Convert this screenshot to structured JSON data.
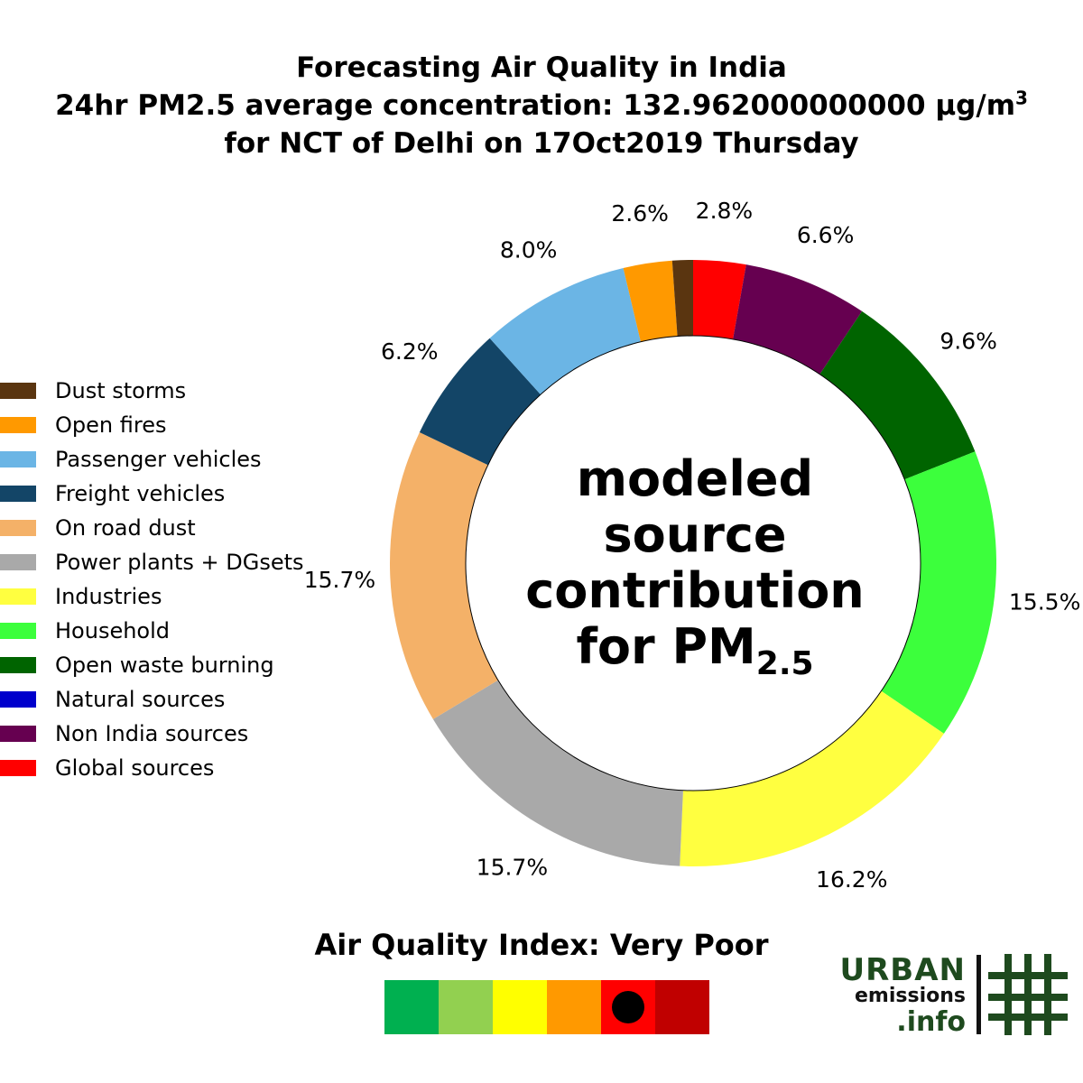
{
  "title": {
    "line1": "Forecasting Air Quality in India",
    "line2_prefix": "24hr PM2.5 average concentration: 132.962000000000 µg/m",
    "line2_sup": "3",
    "line3": "for NCT of Delhi on 17Oct2019 Thursday"
  },
  "center_label": {
    "line1": "modeled",
    "line2": "source",
    "line3": "contribution",
    "line4_prefix": "for PM",
    "line4_sub": "2.5"
  },
  "chart_data": {
    "type": "pie",
    "style": "donut",
    "start_angle_deg": 90,
    "direction": "clockwise",
    "categories": [
      "Global sources",
      "Non India sources",
      "Natural sources",
      "Open waste burning",
      "Household",
      "Industries",
      "Power plants + DGsets",
      "On road dust",
      "Freight vehicles",
      "Passenger vehicles",
      "Open fires",
      "Dust storms"
    ],
    "values": [
      2.8,
      6.6,
      0.0,
      9.6,
      15.5,
      16.2,
      15.7,
      15.7,
      6.2,
      8.0,
      2.6,
      1.1
    ],
    "labels": [
      "2.8%",
      "6.6%",
      "",
      "9.6%",
      "15.5%",
      "16.2%",
      "15.7%",
      "15.7%",
      "6.2%",
      "8.0%",
      "2.6%",
      ""
    ],
    "colors": [
      "#ff0000",
      "#660050",
      "#0000cc",
      "#006400",
      "#3cff3c",
      "#ffff40",
      "#a9a9a9",
      "#f4b168",
      "#134567",
      "#6bb5e5",
      "#ff9900",
      "#5a3510"
    ],
    "legend": {
      "placement": "left",
      "entries": [
        {
          "label": "Dust storms",
          "color": "#5a3510"
        },
        {
          "label": "Open fires",
          "color": "#ff9900"
        },
        {
          "label": "Passenger vehicles",
          "color": "#6bb5e5"
        },
        {
          "label": "Freight vehicles",
          "color": "#134567"
        },
        {
          "label": "On road dust",
          "color": "#f4b168"
        },
        {
          "label": "Power plants + DGsets",
          "color": "#a9a9a9"
        },
        {
          "label": "Industries",
          "color": "#ffff40"
        },
        {
          "label": "Household",
          "color": "#3cff3c"
        },
        {
          "label": "Open waste burning",
          "color": "#006400"
        },
        {
          "label": "Natural sources",
          "color": "#0000cc"
        },
        {
          "label": "Non India sources",
          "color": "#660050"
        },
        {
          "label": "Global sources",
          "color": "#ff0000"
        }
      ]
    }
  },
  "aqi": {
    "title": "Air Quality Index: Very Poor",
    "scale_colors": [
      "#00b050",
      "#92d050",
      "#ffff00",
      "#ff9900",
      "#ff0000",
      "#c00000"
    ],
    "current_index": 4
  },
  "logo": {
    "line1": "URBAN",
    "line2": "emissions",
    "line3": ".info",
    "color": "#1e4a1e",
    "icon": "hash-grid-icon"
  }
}
